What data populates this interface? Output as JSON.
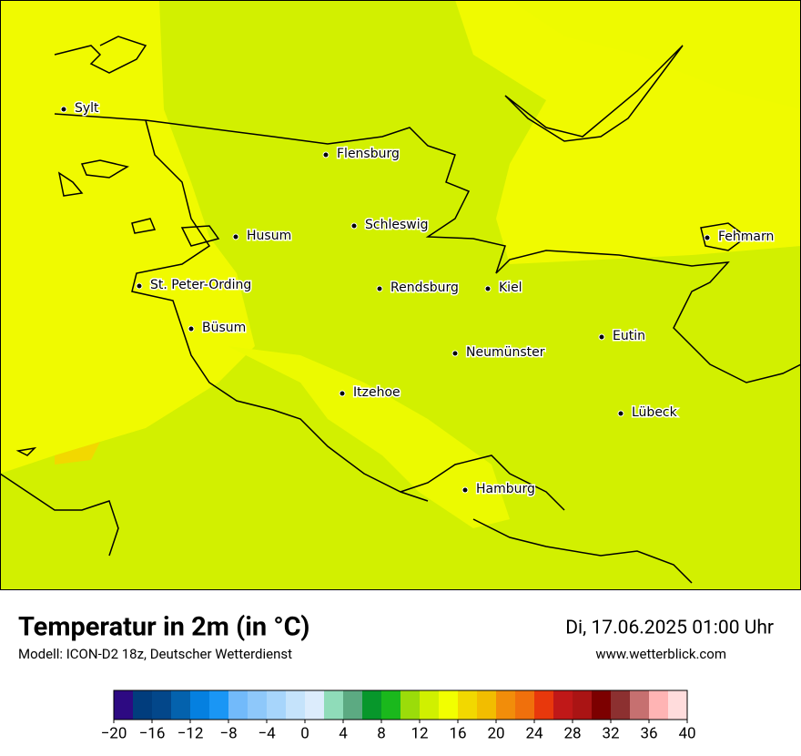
{
  "map": {
    "cities": [
      "Sylt",
      "Flensburg",
      "Schleswig",
      "Husum",
      "Fehmarn",
      "St. Peter-Ording",
      "Rendsburg",
      "Kiel",
      "Büsum",
      "Eutin",
      "Neumünster",
      "Itzehoe",
      "Lübeck",
      "Hamburg"
    ]
  },
  "footer": {
    "title": "Temperatur in 2m (in °C)",
    "model": "Modell: ICON-D2 18z, Deutscher Wetterdienst",
    "datetime": "Di, 17.06.2025 01:00 Uhr",
    "website": "www.wetterblick.com"
  },
  "colorbar": {
    "lim": [
      -20,
      40
    ],
    "colors": [
      "#2d0a82",
      "#013d7d",
      "#03478a",
      "#0462ad",
      "#0580e0",
      "#1a96f5",
      "#72bafa",
      "#8ec8fa",
      "#a7d5fb",
      "#c5e3fb",
      "#dcecfc",
      "#8fdcb9",
      "#5caa82",
      "#07972b",
      "#1ab81c",
      "#9bdc0a",
      "#d0f000",
      "#f2ff00",
      "#f2d800",
      "#f2bd00",
      "#f28d0a",
      "#f0700c",
      "#e8380c",
      "#c01818",
      "#aa1414",
      "#7c0000",
      "#8c3030",
      "#c67070",
      "#ffb4b4",
      "#ffdcdc"
    ],
    "ticks": [
      {
        "value": -20,
        "label": "−20"
      },
      {
        "value": -16,
        "label": "−16"
      },
      {
        "value": -12,
        "label": "−12"
      },
      {
        "value": -8,
        "label": "−8"
      },
      {
        "value": -4,
        "label": "−4"
      },
      0,
      4,
      8,
      12,
      16,
      20,
      24,
      28,
      32,
      36,
      40
    ]
  }
}
